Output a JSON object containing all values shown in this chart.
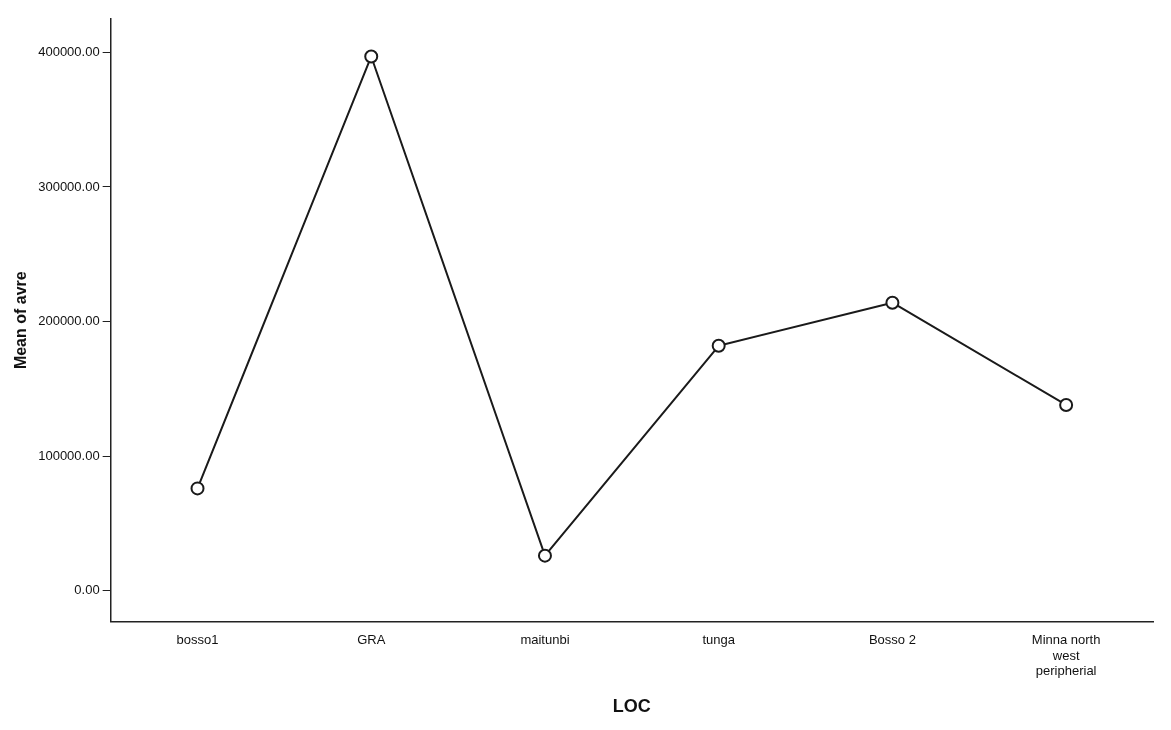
{
  "chart_data": {
    "type": "line",
    "xlabel": "LOC",
    "ylabel": "Mean of avre",
    "categories": [
      "bosso1",
      "GRA",
      "maitunbi",
      "tunga",
      "Bosso 2",
      "Minna north west peripherial"
    ],
    "series": [
      {
        "color": "#1a1a1a",
        "values": [
          76000,
          397000,
          26000,
          182000,
          214000,
          138000
        ]
      }
    ],
    "ylim": [
      -23000,
      425000
    ],
    "yticks": [
      {
        "value": 0,
        "label": "0.00"
      },
      {
        "value": 100000,
        "label": "100000.00"
      },
      {
        "value": 200000,
        "label": "200000.00"
      },
      {
        "value": 300000,
        "label": "300000.00"
      },
      {
        "value": 400000,
        "label": "400000.00"
      }
    ],
    "marker": "circle",
    "line_style": "solid",
    "grid": false,
    "legend": false
  }
}
